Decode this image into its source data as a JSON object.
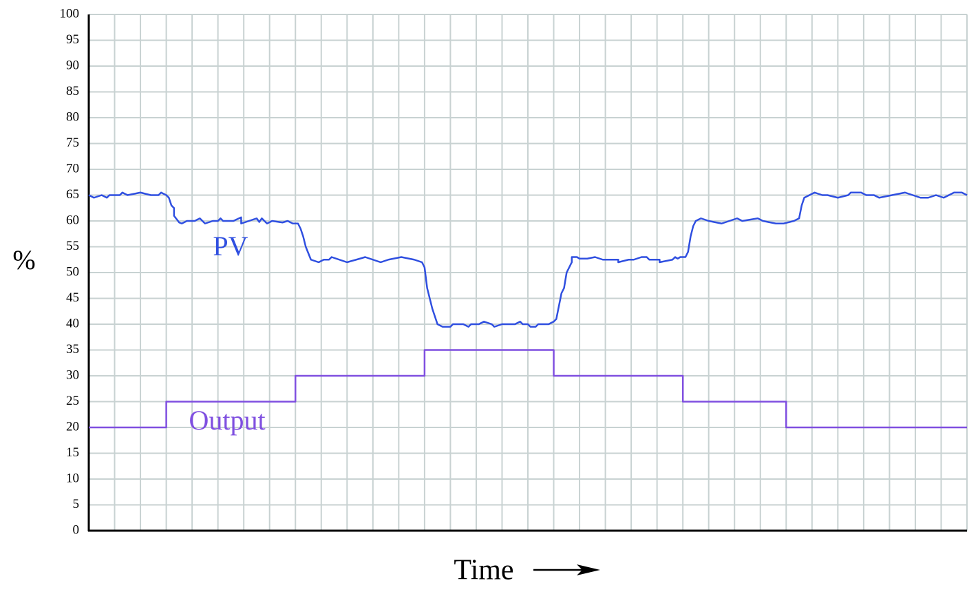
{
  "chart_data": {
    "type": "line",
    "y_label": "%",
    "x_label": "Time",
    "xlim": [
      0,
      34
    ],
    "xticks": [
      0,
      1,
      2,
      3,
      4,
      5,
      6,
      7,
      8,
      9,
      10,
      11,
      12,
      13,
      14,
      15,
      16,
      17,
      18,
      19,
      20,
      21,
      22,
      23,
      24,
      25,
      26,
      27,
      28,
      29,
      30,
      31,
      32,
      33,
      34
    ],
    "ylim": [
      0,
      100
    ],
    "yticks": [
      0,
      5,
      10,
      15,
      20,
      25,
      30,
      35,
      40,
      45,
      50,
      55,
      60,
      65,
      70,
      75,
      80,
      85,
      90,
      95,
      100
    ],
    "grid": true,
    "series": [
      {
        "name": "PV",
        "color": "#2f4fe0",
        "x": [
          0,
          0.2,
          0.5,
          0.7,
          0.8,
          1.2,
          1.3,
          1.5,
          2,
          2.4,
          2.7,
          2.8,
          3,
          3.1,
          3.2,
          3.3,
          3.3,
          3.5,
          3.6,
          3.8,
          4.1,
          4.3,
          4.5,
          4.8,
          5,
          5.1,
          5.2,
          5.6,
          5.9,
          5.9,
          6.2,
          6.5,
          6.6,
          6.7,
          6.9,
          7.1,
          7.5,
          7.7,
          7.9,
          8.1,
          8.2,
          8.3,
          8.4,
          8.6,
          8.9,
          9.1,
          9.3,
          9.4,
          10,
          10.5,
          10.7,
          11.3,
          11.6,
          12.1,
          12.6,
          12.9,
          13,
          13.1,
          13.3,
          13.5,
          13.7,
          14,
          14.1,
          14.5,
          14.7,
          14.8,
          15.1,
          15.3,
          15.6,
          15.7,
          16,
          16.5,
          16.7,
          16.8,
          17,
          17.1,
          17.3,
          17.4,
          17.8,
          18,
          18.1,
          18.3,
          18.4,
          18.5,
          18.7,
          18.7,
          18.9,
          19,
          19.3,
          19.6,
          19.9,
          20.5,
          20.5,
          20.9,
          21.1,
          21.4,
          21.6,
          21.7,
          22.1,
          22.1,
          22.6,
          22.7,
          22.8,
          22.9,
          23.1,
          23.2,
          23.3,
          23.4,
          23.5,
          23.7,
          24,
          24.5,
          24.8,
          25.1,
          25.3,
          25.9,
          26.1,
          26.6,
          26.9,
          27.3,
          27.5,
          27.6,
          27.7,
          27.9,
          28.1,
          28.4,
          28.6,
          29,
          29.4,
          29.5,
          29.9,
          30.1,
          30.4,
          30.6,
          31.1,
          31.6,
          31.9,
          32.2,
          32.5,
          32.8,
          33.1,
          33.5,
          33.8,
          34
        ],
        "values": [
          65,
          64.5,
          65,
          64.5,
          65,
          65,
          65.5,
          65,
          65.5,
          65,
          65,
          65.5,
          65,
          64.5,
          63,
          62.5,
          61,
          59.7,
          59.5,
          60,
          60,
          60.5,
          59.5,
          60,
          60,
          60.5,
          60,
          60,
          60.7,
          59.5,
          60,
          60.5,
          59.8,
          60.5,
          59.5,
          60,
          59.7,
          60,
          59.5,
          59.5,
          58.5,
          57,
          55,
          52.5,
          52,
          52.5,
          52.5,
          53,
          52,
          52.7,
          53,
          52,
          52.5,
          53,
          52.5,
          52,
          51,
          47,
          43,
          40,
          39.5,
          39.5,
          40,
          40,
          39.5,
          40,
          40,
          40.5,
          40,
          39.5,
          40,
          40,
          40.5,
          40,
          40,
          39.5,
          39.5,
          40,
          40,
          40.5,
          41,
          46,
          47,
          50,
          52,
          53,
          53,
          52.7,
          52.7,
          53,
          52.5,
          52.5,
          52,
          52.5,
          52.5,
          53,
          53,
          52.5,
          52.5,
          52,
          52.5,
          53,
          52.7,
          53,
          53,
          54,
          57,
          59,
          60,
          60.5,
          60,
          59.5,
          60,
          60.5,
          60,
          60.5,
          60,
          59.5,
          59.5,
          60,
          60.5,
          63,
          64.5,
          65,
          65.5,
          65,
          65,
          64.5,
          65,
          65.5,
          65.5,
          65,
          65,
          64.5,
          65,
          65.5,
          65,
          64.5,
          64.5,
          65,
          64.5,
          65.5,
          65.5,
          65
        ]
      },
      {
        "name": "Output",
        "color": "#7f4fe0",
        "x": [
          0,
          3,
          3,
          8,
          8,
          13,
          13,
          18,
          18,
          23,
          23,
          27,
          27,
          34
        ],
        "values": [
          20,
          20,
          25,
          25,
          30,
          30,
          35,
          35,
          30,
          30,
          25,
          25,
          20,
          20
        ]
      }
    ]
  }
}
